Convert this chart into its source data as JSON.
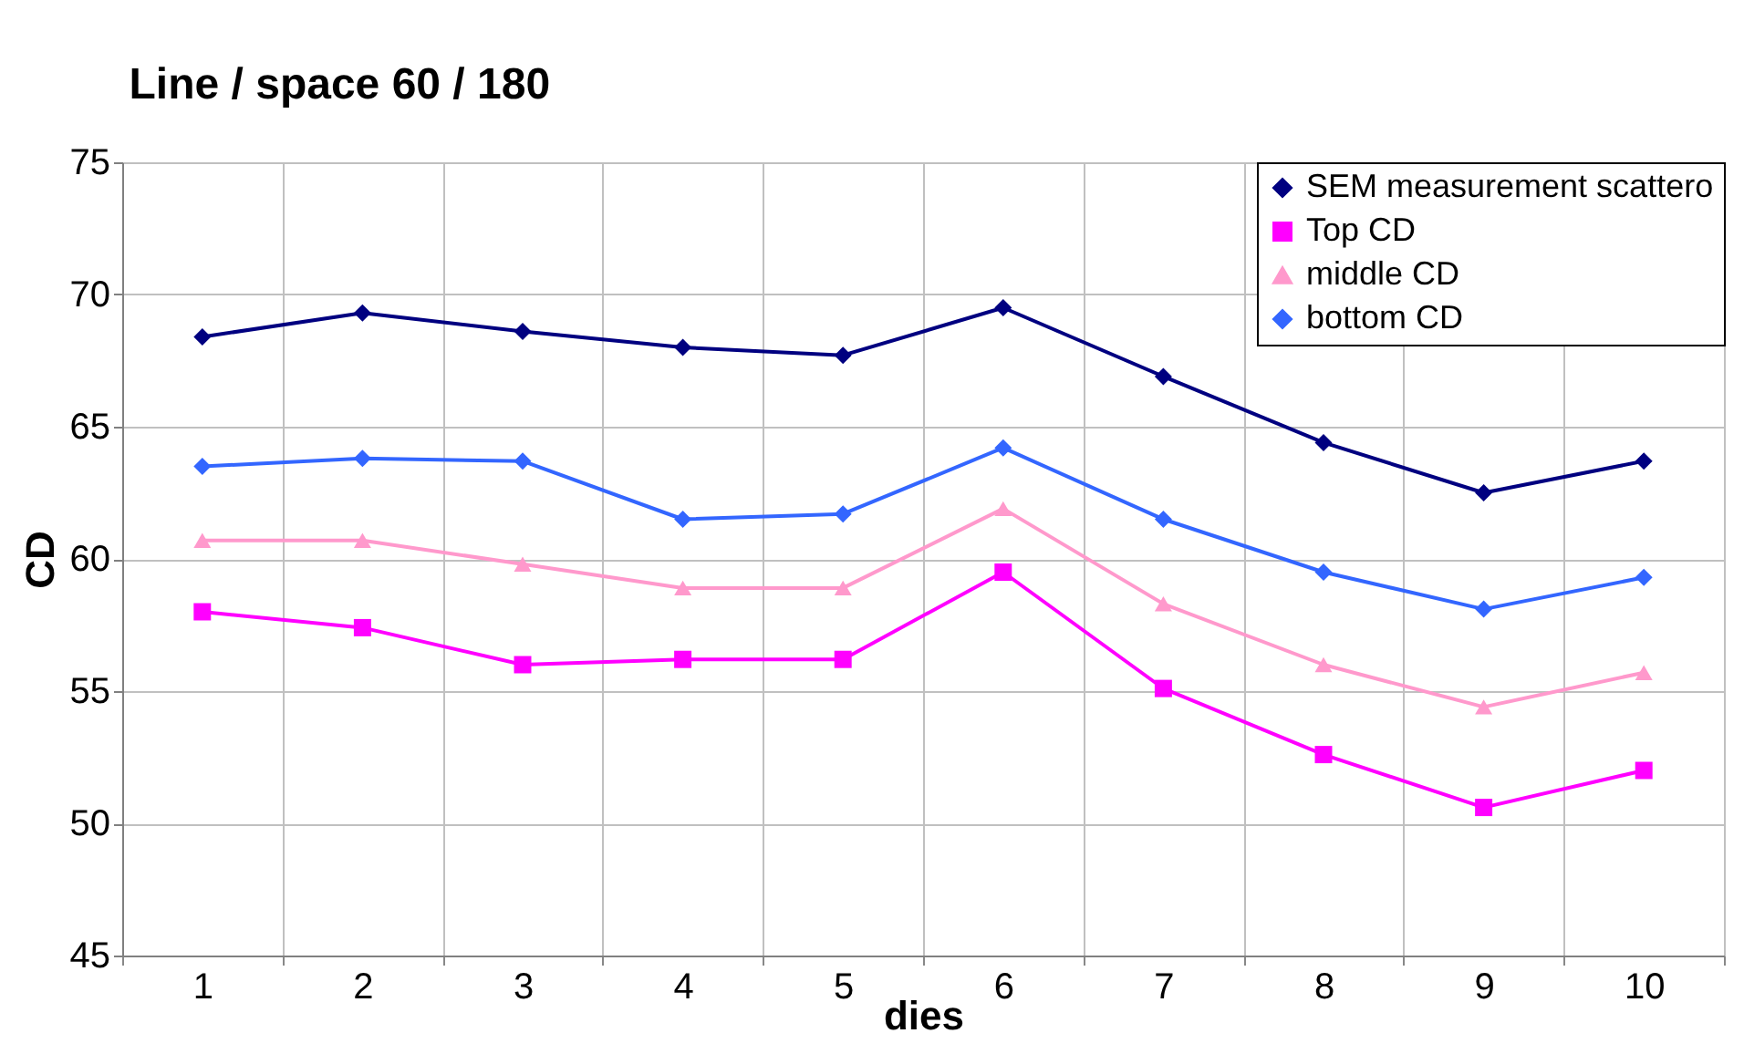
{
  "chart_data": {
    "type": "line",
    "title": "Line / space      60 / 180",
    "xlabel": "dies",
    "ylabel": "CD",
    "categories": [
      "1",
      "2",
      "3",
      "4",
      "5",
      "6",
      "7",
      "8",
      "9",
      "10"
    ],
    "ylim": [
      45,
      75
    ],
    "yticks": [
      45,
      50,
      55,
      60,
      65,
      70,
      75
    ],
    "grid": true,
    "legend": "top right",
    "line_style": "solid",
    "series": [
      {
        "name": "SEM measurement scattero",
        "color": "#000080",
        "marker": "diamond",
        "values": [
          68.4,
          69.3,
          68.6,
          68.0,
          67.7,
          69.5,
          66.9,
          64.4,
          62.5,
          63.7
        ]
      },
      {
        "name": "Top CD",
        "color": "#ff00ff",
        "marker": "square",
        "values": [
          58.0,
          57.4,
          56.0,
          56.2,
          56.2,
          59.5,
          55.1,
          52.6,
          50.6,
          52.0
        ]
      },
      {
        "name": "middle CD",
        "color": "#ff99cc",
        "marker": "triangle",
        "values": [
          60.7,
          60.7,
          59.8,
          58.9,
          58.9,
          61.9,
          58.3,
          56.0,
          54.4,
          55.7
        ]
      },
      {
        "name": "bottom CD",
        "color": "#3366ff",
        "marker": "diamond",
        "values": [
          63.5,
          63.8,
          63.7,
          61.5,
          61.7,
          64.2,
          61.5,
          59.5,
          58.1,
          59.3
        ]
      }
    ]
  }
}
